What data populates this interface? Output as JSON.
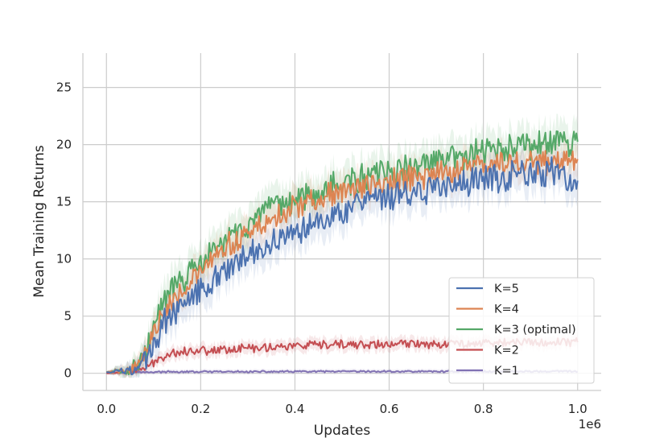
{
  "chart_data": {
    "type": "line",
    "title": "",
    "xlabel": "Updates",
    "ylabel": "Mean Training Returns",
    "x_scale_label": "1e6",
    "xlim": [
      -0.05,
      1.05
    ],
    "ylim": [
      -1.5,
      28.0
    ],
    "xticks": [
      0.0,
      0.2,
      0.4,
      0.6,
      0.8,
      1.0
    ],
    "xtick_labels": [
      "0.0",
      "0.2",
      "0.4",
      "0.6",
      "0.8",
      "1.0"
    ],
    "yticks": [
      0,
      5,
      10,
      15,
      20,
      25
    ],
    "ytick_labels": [
      "0",
      "5",
      "10",
      "15",
      "20",
      "25"
    ],
    "grid": true,
    "legend_position": "bottom-right",
    "x": [
      0.0,
      0.05,
      0.08,
      0.1,
      0.12,
      0.15,
      0.2,
      0.25,
      0.3,
      0.35,
      0.4,
      0.45,
      0.5,
      0.55,
      0.6,
      0.65,
      0.7,
      0.75,
      0.8,
      0.85,
      0.9,
      0.95,
      1.0
    ],
    "series": [
      {
        "name": "K=5",
        "color": "#4c72b0",
        "noise": 1.1,
        "values": [
          0.1,
          0.2,
          1.0,
          2.5,
          4.2,
          5.8,
          7.5,
          9.0,
          10.2,
          11.5,
          12.5,
          13.5,
          14.3,
          14.8,
          15.3,
          15.8,
          16.2,
          16.6,
          17.0,
          17.3,
          17.5,
          17.6,
          16.5
        ]
      },
      {
        "name": "K=4",
        "color": "#dd8452",
        "noise": 1.0,
        "values": [
          0.1,
          0.3,
          1.5,
          3.5,
          5.5,
          7.0,
          8.8,
          10.8,
          12.2,
          13.5,
          14.5,
          15.3,
          15.9,
          16.3,
          16.7,
          17.1,
          17.5,
          17.9,
          18.2,
          18.4,
          18.6,
          18.5,
          18.6
        ]
      },
      {
        "name": "K=3 (optimal)",
        "color": "#55a868",
        "noise": 1.1,
        "values": [
          0.1,
          0.3,
          1.6,
          3.8,
          6.2,
          7.8,
          9.5,
          11.5,
          13.0,
          14.2,
          15.2,
          16.0,
          16.6,
          17.1,
          17.6,
          18.0,
          18.5,
          18.9,
          19.3,
          19.6,
          19.9,
          20.1,
          20.3
        ]
      },
      {
        "name": "K=2",
        "color": "#c44e52",
        "noise": 0.35,
        "values": [
          0.0,
          0.1,
          0.4,
          0.9,
          1.5,
          1.9,
          2.0,
          2.1,
          2.2,
          2.3,
          2.4,
          2.4,
          2.5,
          2.5,
          2.5,
          2.6,
          2.6,
          2.6,
          2.7,
          2.7,
          2.7,
          2.7,
          2.8
        ]
      },
      {
        "name": "K=1",
        "color": "#8172b3",
        "noise": 0.07,
        "values": [
          0.05,
          0.1,
          0.1,
          0.1,
          0.12,
          0.12,
          0.13,
          0.13,
          0.14,
          0.14,
          0.15,
          0.15,
          0.15,
          0.15,
          0.16,
          0.16,
          0.16,
          0.16,
          0.16,
          0.16,
          0.16,
          0.17,
          0.17
        ]
      }
    ]
  }
}
